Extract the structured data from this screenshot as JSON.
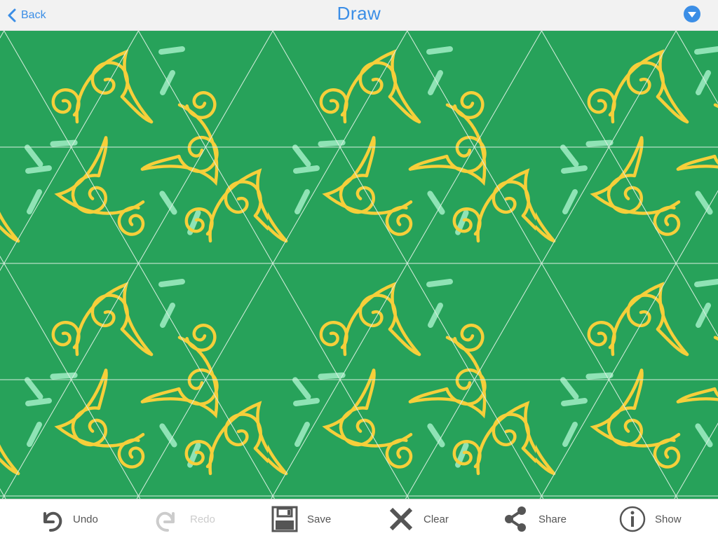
{
  "navbar": {
    "back_label": "Back",
    "title": "Draw",
    "menu_icon": "triangle-down-circle-icon"
  },
  "canvas": {
    "background_color": "#27a25a",
    "grid_color": "#d9efe0",
    "stroke_colors": [
      "#f6cf3a",
      "#8fe3b5"
    ],
    "pattern": "hexagonal kaleidoscope tiling"
  },
  "toolbar": {
    "undo_label": "Undo",
    "redo_label": "Redo",
    "save_label": "Save",
    "clear_label": "Clear",
    "share_label": "Share",
    "show_label": "Show",
    "redo_disabled": true
  },
  "colors": {
    "accent": "#3b8ee6",
    "toolbar_text": "#555555",
    "disabled_text": "#cccccc"
  }
}
